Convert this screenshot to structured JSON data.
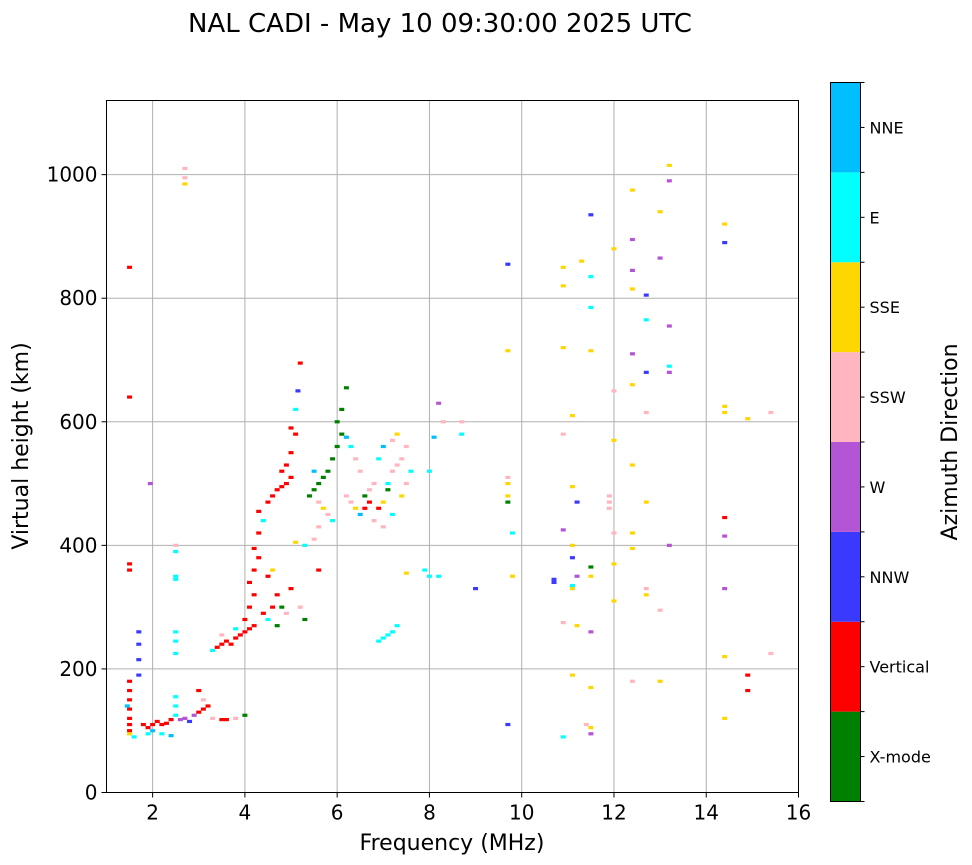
{
  "chart_data": {
    "type": "scatter",
    "title": "NAL CADI - May 10 09:30:00 2025 UTC",
    "xlabel": "Frequency (MHz)",
    "ylabel": "Virtual height (km)",
    "xlim": [
      1,
      16
    ],
    "ylim": [
      0,
      1120
    ],
    "xticks": [
      2,
      4,
      6,
      8,
      10,
      12,
      14,
      16
    ],
    "yticks": [
      0,
      200,
      400,
      600,
      800,
      1000
    ],
    "grid": true,
    "colorbar": {
      "label": "Azimuth Direction",
      "categories": [
        {
          "name": "X-mode",
          "color": "#008000"
        },
        {
          "name": "Vertical",
          "color": "#ff0000"
        },
        {
          "name": "NNW",
          "color": "#3a3aff"
        },
        {
          "name": "W",
          "color": "#b455d6"
        },
        {
          "name": "SSW",
          "color": "#ffb6c1"
        },
        {
          "name": "SSE",
          "color": "#ffd700"
        },
        {
          "name": "E",
          "color": "#00ffff"
        },
        {
          "name": "NNE",
          "color": "#00bfff"
        }
      ]
    },
    "points": [
      [
        1.5,
        850,
        "Vertical"
      ],
      [
        1.5,
        640,
        "Vertical"
      ],
      [
        1.5,
        370,
        "Vertical"
      ],
      [
        1.5,
        360,
        "Vertical"
      ],
      [
        1.5,
        180,
        "Vertical"
      ],
      [
        1.5,
        165,
        "Vertical"
      ],
      [
        1.5,
        150,
        "Vertical"
      ],
      [
        1.5,
        135,
        "Vertical"
      ],
      [
        1.5,
        120,
        "Vertical"
      ],
      [
        1.5,
        110,
        "Vertical"
      ],
      [
        1.5,
        100,
        "Vertical"
      ],
      [
        1.45,
        140,
        "NNE"
      ],
      [
        1.5,
        95,
        "SSE"
      ],
      [
        1.6,
        90,
        "E"
      ],
      [
        1.7,
        260,
        "NNW"
      ],
      [
        1.7,
        240,
        "NNW"
      ],
      [
        1.7,
        215,
        "NNW"
      ],
      [
        1.7,
        190,
        "NNW"
      ],
      [
        1.8,
        110,
        "Vertical"
      ],
      [
        1.9,
        105,
        "Vertical"
      ],
      [
        2.0,
        110,
        "Vertical"
      ],
      [
        2.1,
        115,
        "Vertical"
      ],
      [
        2.2,
        110,
        "Vertical"
      ],
      [
        2.3,
        112,
        "Vertical"
      ],
      [
        2.4,
        118,
        "Vertical"
      ],
      [
        1.9,
        95,
        "E"
      ],
      [
        2.0,
        100,
        "NNE"
      ],
      [
        2.2,
        95,
        "E"
      ],
      [
        2.4,
        92,
        "NNE"
      ],
      [
        1.95,
        500,
        "W"
      ],
      [
        2.7,
        1010,
        "SSW"
      ],
      [
        2.7,
        995,
        "SSW"
      ],
      [
        2.7,
        985,
        "SSE"
      ],
      [
        2.5,
        400,
        "SSW"
      ],
      [
        2.5,
        390,
        "E"
      ],
      [
        2.5,
        350,
        "E"
      ],
      [
        2.5,
        345,
        "E"
      ],
      [
        2.5,
        260,
        "E"
      ],
      [
        2.5,
        245,
        "E"
      ],
      [
        2.5,
        225,
        "E"
      ],
      [
        2.5,
        155,
        "E"
      ],
      [
        2.5,
        140,
        "E"
      ],
      [
        2.5,
        125,
        "E"
      ],
      [
        2.6,
        118,
        "W"
      ],
      [
        2.7,
        120,
        "W"
      ],
      [
        2.8,
        115,
        "NNW"
      ],
      [
        2.9,
        125,
        "W"
      ],
      [
        3.0,
        130,
        "Vertical"
      ],
      [
        3.1,
        135,
        "Vertical"
      ],
      [
        3.2,
        140,
        "Vertical"
      ],
      [
        3.0,
        165,
        "Vertical"
      ],
      [
        3.1,
        150,
        "SSW"
      ],
      [
        3.3,
        120,
        "SSW"
      ],
      [
        3.5,
        118,
        "Vertical"
      ],
      [
        3.6,
        118,
        "Vertical"
      ],
      [
        3.8,
        120,
        "SSW"
      ],
      [
        4.0,
        125,
        "X-mode"
      ],
      [
        3.3,
        230,
        "E"
      ],
      [
        3.4,
        235,
        "Vertical"
      ],
      [
        3.5,
        240,
        "Vertical"
      ],
      [
        3.6,
        245,
        "Vertical"
      ],
      [
        3.7,
        240,
        "Vertical"
      ],
      [
        3.8,
        250,
        "Vertical"
      ],
      [
        3.9,
        255,
        "Vertical"
      ],
      [
        4.0,
        260,
        "Vertical"
      ],
      [
        4.1,
        265,
        "Vertical"
      ],
      [
        4.2,
        270,
        "Vertical"
      ],
      [
        3.5,
        255,
        "SSW"
      ],
      [
        3.8,
        265,
        "E"
      ],
      [
        4.0,
        280,
        "Vertical"
      ],
      [
        4.1,
        300,
        "Vertical"
      ],
      [
        4.2,
        320,
        "Vertical"
      ],
      [
        4.1,
        340,
        "Vertical"
      ],
      [
        4.2,
        360,
        "Vertical"
      ],
      [
        4.3,
        380,
        "Vertical"
      ],
      [
        4.2,
        395,
        "Vertical"
      ],
      [
        4.3,
        420,
        "Vertical"
      ],
      [
        4.4,
        440,
        "E"
      ],
      [
        4.3,
        455,
        "Vertical"
      ],
      [
        4.5,
        470,
        "Vertical"
      ],
      [
        4.6,
        480,
        "Vertical"
      ],
      [
        4.7,
        490,
        "Vertical"
      ],
      [
        4.8,
        495,
        "Vertical"
      ],
      [
        4.9,
        500,
        "Vertical"
      ],
      [
        5.0,
        510,
        "Vertical"
      ],
      [
        4.8,
        520,
        "Vertical"
      ],
      [
        4.9,
        530,
        "Vertical"
      ],
      [
        5.0,
        550,
        "Vertical"
      ],
      [
        5.1,
        580,
        "Vertical"
      ],
      [
        5.1,
        620,
        "E"
      ],
      [
        5.15,
        650,
        "NNW"
      ],
      [
        5.2,
        695,
        "Vertical"
      ],
      [
        5.0,
        590,
        "Vertical"
      ],
      [
        4.6,
        300,
        "Vertical"
      ],
      [
        4.7,
        320,
        "Vertical"
      ],
      [
        4.5,
        350,
        "Vertical"
      ],
      [
        4.6,
        360,
        "SSE"
      ],
      [
        4.4,
        290,
        "Vertical"
      ],
      [
        4.5,
        280,
        "E"
      ],
      [
        4.7,
        270,
        "X-mode"
      ],
      [
        4.8,
        300,
        "X-mode"
      ],
      [
        4.9,
        290,
        "SSW"
      ],
      [
        5.0,
        330,
        "Vertical"
      ],
      [
        5.2,
        300,
        "SSW"
      ],
      [
        5.3,
        280,
        "X-mode"
      ],
      [
        5.1,
        405,
        "SSE"
      ],
      [
        5.3,
        400,
        "E"
      ],
      [
        5.5,
        410,
        "SSW"
      ],
      [
        5.6,
        360,
        "Vertical"
      ],
      [
        5.4,
        480,
        "X-mode"
      ],
      [
        5.5,
        490,
        "X-mode"
      ],
      [
        5.6,
        500,
        "X-mode"
      ],
      [
        5.7,
        510,
        "X-mode"
      ],
      [
        5.8,
        520,
        "X-mode"
      ],
      [
        5.9,
        540,
        "X-mode"
      ],
      [
        6.0,
        560,
        "X-mode"
      ],
      [
        6.1,
        580,
        "X-mode"
      ],
      [
        6.0,
        600,
        "X-mode"
      ],
      [
        6.1,
        620,
        "X-mode"
      ],
      [
        6.2,
        655,
        "X-mode"
      ],
      [
        5.6,
        470,
        "SSW"
      ],
      [
        5.7,
        460,
        "SSE"
      ],
      [
        5.8,
        450,
        "SSW"
      ],
      [
        5.9,
        440,
        "E"
      ],
      [
        5.5,
        520,
        "NNE"
      ],
      [
        5.6,
        430,
        "SSW"
      ],
      [
        6.2,
        575,
        "NNE"
      ],
      [
        6.3,
        560,
        "E"
      ],
      [
        6.4,
        540,
        "SSW"
      ],
      [
        6.5,
        520,
        "SSW"
      ],
      [
        6.2,
        480,
        "SSW"
      ],
      [
        6.3,
        470,
        "SSW"
      ],
      [
        6.4,
        460,
        "SSE"
      ],
      [
        6.5,
        450,
        "NNE"
      ],
      [
        6.6,
        480,
        "X-mode"
      ],
      [
        6.7,
        490,
        "SSW"
      ],
      [
        6.8,
        500,
        "SSW"
      ],
      [
        6.9,
        460,
        "Vertical"
      ],
      [
        7.0,
        470,
        "SSE"
      ],
      [
        7.1,
        500,
        "E"
      ],
      [
        7.2,
        520,
        "SSW"
      ],
      [
        7.3,
        530,
        "SSW"
      ],
      [
        7.4,
        540,
        "SSW"
      ],
      [
        7.5,
        560,
        "SSW"
      ],
      [
        6.8,
        440,
        "SSW"
      ],
      [
        7.0,
        430,
        "SSW"
      ],
      [
        7.2,
        450,
        "E"
      ],
      [
        7.4,
        480,
        "SSE"
      ],
      [
        7.5,
        500,
        "SSW"
      ],
      [
        7.6,
        520,
        "E"
      ],
      [
        7.2,
        570,
        "SSW"
      ],
      [
        7.3,
        580,
        "SSE"
      ],
      [
        7.0,
        560,
        "NNE"
      ],
      [
        6.9,
        540,
        "E"
      ],
      [
        6.6,
        460,
        "Vertical"
      ],
      [
        6.7,
        470,
        "Vertical"
      ],
      [
        7.1,
        490,
        "X-mode"
      ],
      [
        7.0,
        250,
        "E"
      ],
      [
        7.1,
        255,
        "E"
      ],
      [
        7.2,
        260,
        "E"
      ],
      [
        7.3,
        270,
        "E"
      ],
      [
        6.9,
        245,
        "E"
      ],
      [
        7.5,
        355,
        "SSE"
      ],
      [
        7.9,
        360,
        "E"
      ],
      [
        8.0,
        350,
        "E"
      ],
      [
        8.2,
        350,
        "E"
      ],
      [
        8.0,
        520,
        "E"
      ],
      [
        8.1,
        575,
        "NNE"
      ],
      [
        8.3,
        600,
        "SSW"
      ],
      [
        8.2,
        630,
        "W"
      ],
      [
        8.7,
        600,
        "SSW"
      ],
      [
        8.7,
        580,
        "E"
      ],
      [
        9.0,
        330,
        "NNW"
      ],
      [
        9.7,
        110,
        "NNW"
      ],
      [
        9.7,
        470,
        "X-mode"
      ],
      [
        9.7,
        480,
        "SSE"
      ],
      [
        9.7,
        500,
        "SSE"
      ],
      [
        9.7,
        510,
        "SSW"
      ],
      [
        9.7,
        715,
        "SSE"
      ],
      [
        9.7,
        855,
        "NNW"
      ],
      [
        9.8,
        420,
        "E"
      ],
      [
        9.8,
        350,
        "SSE"
      ],
      [
        10.7,
        345,
        "NNW"
      ],
      [
        10.7,
        340,
        "NNW"
      ],
      [
        10.9,
        90,
        "E"
      ],
      [
        10.9,
        275,
        "SSW"
      ],
      [
        10.9,
        425,
        "W"
      ],
      [
        10.9,
        580,
        "SSW"
      ],
      [
        10.9,
        720,
        "SSE"
      ],
      [
        10.9,
        820,
        "SSE"
      ],
      [
        10.9,
        850,
        "SSE"
      ],
      [
        11.1,
        190,
        "SSE"
      ],
      [
        11.1,
        330,
        "SSE"
      ],
      [
        11.1,
        335,
        "E"
      ],
      [
        11.1,
        380,
        "NNW"
      ],
      [
        11.1,
        400,
        "SSE"
      ],
      [
        11.1,
        495,
        "SSE"
      ],
      [
        11.1,
        610,
        "SSE"
      ],
      [
        11.2,
        270,
        "SSE"
      ],
      [
        11.2,
        350,
        "W"
      ],
      [
        11.2,
        470,
        "NNW"
      ],
      [
        11.3,
        860,
        "SSE"
      ],
      [
        11.4,
        110,
        "SSW"
      ],
      [
        11.5,
        105,
        "SSE"
      ],
      [
        11.5,
        95,
        "W"
      ],
      [
        11.5,
        170,
        "SSE"
      ],
      [
        11.5,
        260,
        "W"
      ],
      [
        11.5,
        350,
        "SSE"
      ],
      [
        11.5,
        365,
        "X-mode"
      ],
      [
        11.5,
        715,
        "SSE"
      ],
      [
        11.5,
        785,
        "E"
      ],
      [
        11.5,
        835,
        "E"
      ],
      [
        11.5,
        935,
        "NNW"
      ],
      [
        11.9,
        460,
        "SSW"
      ],
      [
        11.9,
        470,
        "SSW"
      ],
      [
        11.9,
        480,
        "SSW"
      ],
      [
        12.0,
        310,
        "SSE"
      ],
      [
        12.0,
        420,
        "SSW"
      ],
      [
        12.0,
        370,
        "SSE"
      ],
      [
        12.0,
        570,
        "SSE"
      ],
      [
        12.0,
        650,
        "SSW"
      ],
      [
        12.0,
        880,
        "SSE"
      ],
      [
        12.4,
        180,
        "SSW"
      ],
      [
        12.4,
        395,
        "SSE"
      ],
      [
        12.4,
        420,
        "SSE"
      ],
      [
        12.4,
        530,
        "SSE"
      ],
      [
        12.4,
        660,
        "SSE"
      ],
      [
        12.4,
        710,
        "W"
      ],
      [
        12.4,
        815,
        "SSE"
      ],
      [
        12.4,
        845,
        "W"
      ],
      [
        12.4,
        895,
        "W"
      ],
      [
        12.4,
        975,
        "SSE"
      ],
      [
        12.7,
        320,
        "SSE"
      ],
      [
        12.7,
        330,
        "SSW"
      ],
      [
        12.7,
        470,
        "SSE"
      ],
      [
        12.7,
        615,
        "SSW"
      ],
      [
        12.7,
        680,
        "NNW"
      ],
      [
        12.7,
        765,
        "E"
      ],
      [
        12.7,
        805,
        "NNW"
      ],
      [
        13.0,
        180,
        "SSE"
      ],
      [
        13.0,
        295,
        "SSW"
      ],
      [
        13.0,
        865,
        "W"
      ],
      [
        13.0,
        940,
        "SSE"
      ],
      [
        13.2,
        400,
        "W"
      ],
      [
        13.2,
        680,
        "W"
      ],
      [
        13.2,
        690,
        "E"
      ],
      [
        13.2,
        755,
        "W"
      ],
      [
        13.2,
        990,
        "W"
      ],
      [
        13.2,
        1015,
        "SSE"
      ],
      [
        14.4,
        120,
        "SSE"
      ],
      [
        14.4,
        220,
        "SSE"
      ],
      [
        14.4,
        330,
        "W"
      ],
      [
        14.4,
        415,
        "W"
      ],
      [
        14.4,
        445,
        "Vertical"
      ],
      [
        14.4,
        615,
        "SSE"
      ],
      [
        14.4,
        625,
        "SSE"
      ],
      [
        14.4,
        890,
        "NNW"
      ],
      [
        14.4,
        920,
        "SSE"
      ],
      [
        14.9,
        165,
        "Vertical"
      ],
      [
        14.9,
        190,
        "Vertical"
      ],
      [
        14.9,
        605,
        "SSE"
      ],
      [
        15.4,
        225,
        "SSW"
      ],
      [
        15.4,
        615,
        "SSW"
      ]
    ]
  }
}
